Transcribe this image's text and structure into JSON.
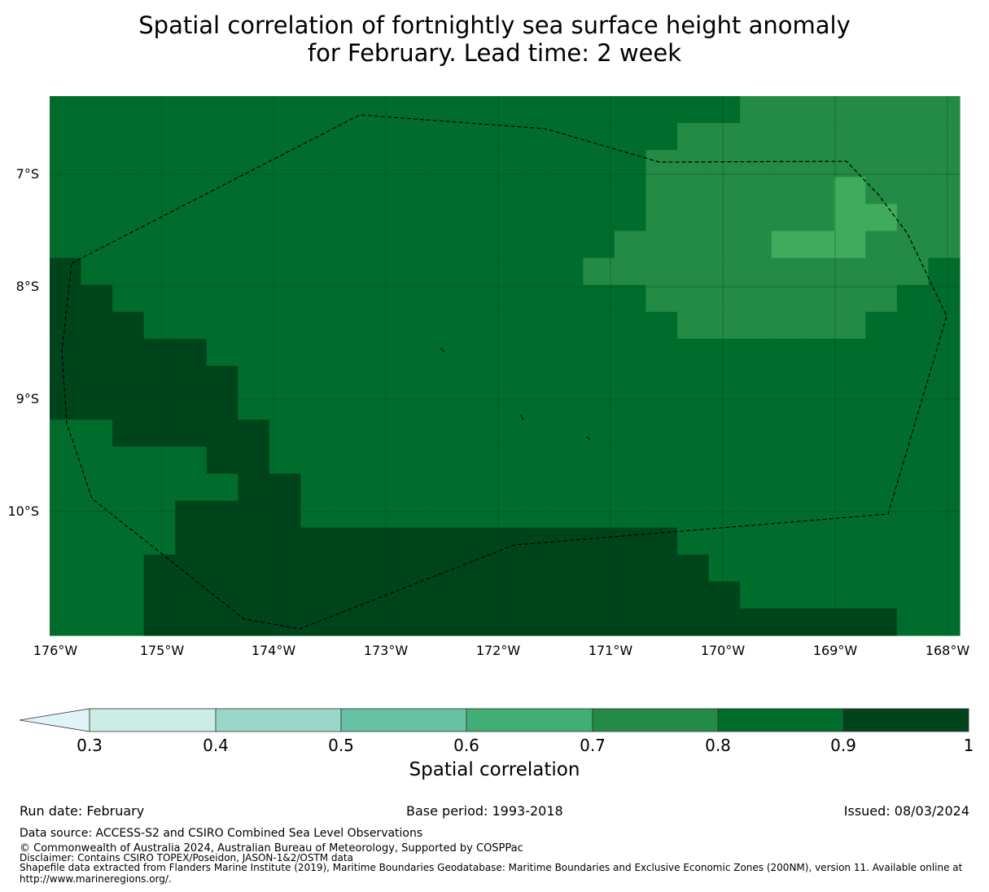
{
  "title_line1": "Spatial correlation of fortnightly sea surface height anomaly",
  "title_line2": "for February. Lead time: 2 week",
  "map": {
    "lat_labels": [
      "7°S",
      "8°S",
      "9°S",
      "10°S"
    ],
    "lon_labels": [
      "176°W",
      "175°W",
      "174°W",
      "173°W",
      "172°W",
      "171°W",
      "170°W",
      "169°W",
      "168°W"
    ],
    "field_class_rows": [
      "33333333333333333333334444444",
      "33333333333333333333444444444",
      "33333333333333333334444444444",
      "33333333333333333334444445444",
      "33333333333333333334444445544",
      "33333333333333333344444555444",
      "23333333333333333444444444443",
      "22333333333333333334444444433",
      "22233333333333333333444444333",
      "22222333333333333333333333333",
      "22222233333333333333333333333",
      "22222233333333333333333333333",
      "33222223333333333333333333333",
      "33333223333333333333333333333",
      "33333322333333333333333333333",
      "33332222333333333333333333333",
      "33332222222222222222333333333",
      "33322222222222222222233333333",
      "33322222222222222222223333333",
      "33322222222222222222222222233"
    ],
    "class_colors": [
      "#e2f3f4",
      "#c6e9e0",
      "#00441b",
      "#006d2c",
      "#238b45",
      "#41ab5d"
    ]
  },
  "colorbar": {
    "colors": [
      "#e0f3f8",
      "#ccece6",
      "#99d8c9",
      "#66c2a4",
      "#41ae76",
      "#238b45",
      "#006d2c",
      "#00441b"
    ],
    "ticks": [
      "0.3",
      "0.4",
      "0.5",
      "0.6",
      "0.7",
      "0.8",
      "0.9",
      "1"
    ],
    "label": "Spatial correlation"
  },
  "footer": {
    "run_date": "Run date: February",
    "base_period": "Base period: 1993-2018",
    "issued": "Issued: 08/03/2024",
    "data_source": "Data source: ACCESS-S2 and CSIRO Combined Sea Level Observations",
    "copyright": "© Commonwealth of Australia 2024, Australian Bureau of Meteorology, Supported by COSPPac",
    "disclaimer": "Disclaimer: Contains CSIRO TOPEX/Poseidon, JASON-1&2/OSTM data",
    "shapefile": "Shapefile data extracted from Flanders Marine Institute (2019), Maritime Boundaries Geodatabase: Maritime Boundaries and Exclusive Economic Zones (200NM), version 11. Available online at",
    "url": "http://www.marineregions.org/."
  }
}
